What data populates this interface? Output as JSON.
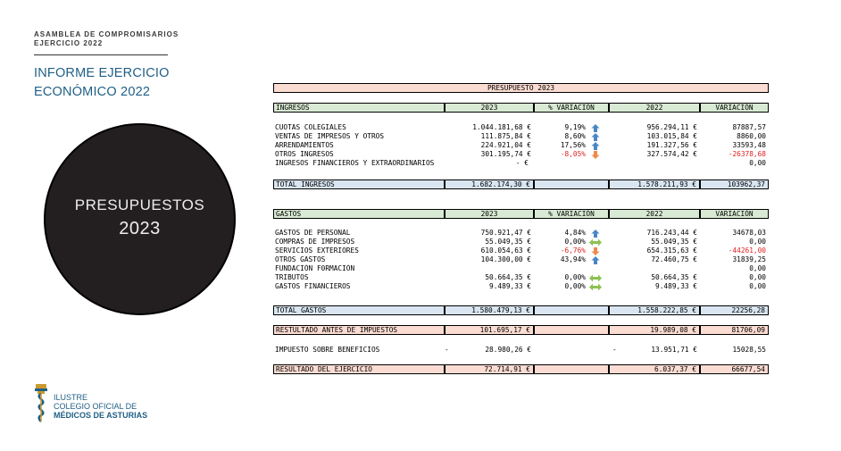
{
  "header": {
    "line1": "ASAMBLEA DE COMPROMISARIOS",
    "line2": "EJERCICIO 2022"
  },
  "title": {
    "line1": "INFORME EJERCICIO",
    "line2": "ECONÓMICO 2022"
  },
  "circle": {
    "line1": "PRESUPUESTOS",
    "line2": "2023"
  },
  "logo": {
    "line1": "ILUSTRE",
    "line2": "COLEGIO OFICIAL DE",
    "line3": "MÉDICOS DE ASTURIAS"
  },
  "colors": {
    "green": "#d8ead3",
    "salmon": "#fbdcd2",
    "blue": "#d9e6f2",
    "negative": "#e02020",
    "title": "#1f5f86"
  },
  "table": {
    "banner": "PRESUPUESTO 2023",
    "income_header": {
      "label": "INGRESOS",
      "y2023": "2023",
      "pct": "% VARIACIÓN",
      "y2022": "2022",
      "var": "VARIACIÓN"
    },
    "income_rows": [
      {
        "label": "CUOTAS COLEGIALES",
        "y2023": "1.044.181,68 €",
        "pct": "9,19%",
        "arrow": "up-icon",
        "y2022": "956.294,11 €",
        "var": "87887,57"
      },
      {
        "label": "VENTAS DE IMPRESOS Y OTROS",
        "y2023": "111.875,84 €",
        "pct": "8,60%",
        "arrow": "up-icon",
        "y2022": "103.015,84 €",
        "var": "8860,00"
      },
      {
        "label": "ARRENDAMIENTOS",
        "y2023": "224.921,04 €",
        "pct": "17,56%",
        "arrow": "up-icon",
        "y2022": "191.327,56 €",
        "var": "33593,48"
      },
      {
        "label": "OTROS INGRESOS",
        "y2023": "301.195,74 €",
        "pct": "-8,05%",
        "arrow": "down-icon",
        "y2022": "327.574,42 €",
        "var": "-26378,68"
      },
      {
        "label": "INGRESOS FINANCIEROS Y EXTRAORDINARIOS",
        "y2023": "-   €",
        "pct": "",
        "arrow": "",
        "y2022": "",
        "var": "0,00"
      }
    ],
    "income_total": {
      "label": "TOTAL INGRESOS",
      "y2023": "1.682.174,30 €",
      "y2022": "1.578.211,93 €",
      "var": "103962,37"
    },
    "expense_header": {
      "label": "GASTOS",
      "y2023": "2023",
      "pct": "% VARIACIÓN",
      "y2022": "2022",
      "var": "VARIACIÓN"
    },
    "expense_rows": [
      {
        "label": "GASTOS DE PERSONAL",
        "y2023": "750.921,47 €",
        "pct": "4,84%",
        "arrow": "up-icon",
        "y2022": "716.243,44 €",
        "var": "34678,03"
      },
      {
        "label": "COMPRAS DE IMPRESOS",
        "y2023": "55.049,35 €",
        "pct": "0,00%",
        "arrow": "side-icon",
        "y2022": "55.049,35 €",
        "var": "0,00"
      },
      {
        "label": "SERVICIOS EXTERIORES",
        "y2023": "610.054,63 €",
        "pct": "-6,76%",
        "arrow": "down-icon",
        "y2022": "654.315,63 €",
        "var": "-44261,00"
      },
      {
        "label": "OTROS GASTOS",
        "y2023": "104.300,00 €",
        "pct": "43,94%",
        "arrow": "up-icon",
        "y2022": "72.460,75 €",
        "var": "31839,25"
      },
      {
        "label": "FUNDACIÓN F0RMACIÓN",
        "y2023": "",
        "pct": "",
        "arrow": "",
        "y2022": "",
        "var": "0,00"
      },
      {
        "label": "TRIBUTOS",
        "y2023": "50.664,35 €",
        "pct": "0,00%",
        "arrow": "side-icon",
        "y2022": "50.664,35 €",
        "var": "0,00"
      },
      {
        "label": "GASTOS FINANCIEROS",
        "y2023": "9.489,33 €",
        "pct": "0,00%",
        "arrow": "side-icon",
        "y2022": "9.489,33 €",
        "var": "0,00"
      }
    ],
    "expense_total": {
      "label": "TOTAL GASTOS",
      "y2023": "1.580.479,13 €",
      "y2022": "1.558.222,85 €",
      "var": "22256,28"
    },
    "pretax": {
      "label": "RESTULTADO ANTES DE IMPUESTOS",
      "y2023": "101.695,17 €",
      "y2022": "19.989,08 €",
      "var": "81706,09"
    },
    "tax": {
      "label": "IMPUESTO SOBRE BENEFICIOS",
      "dash": "-",
      "y2023": "28.980,26 €",
      "dash2": "-",
      "y2022": "13.951,71 €",
      "var": "15028,55"
    },
    "result": {
      "label": "RESULTADO DEL EJERCICIO",
      "y2023": "72.714,91 €",
      "y2022": "6.037,37 €",
      "var": "66677,54"
    }
  }
}
